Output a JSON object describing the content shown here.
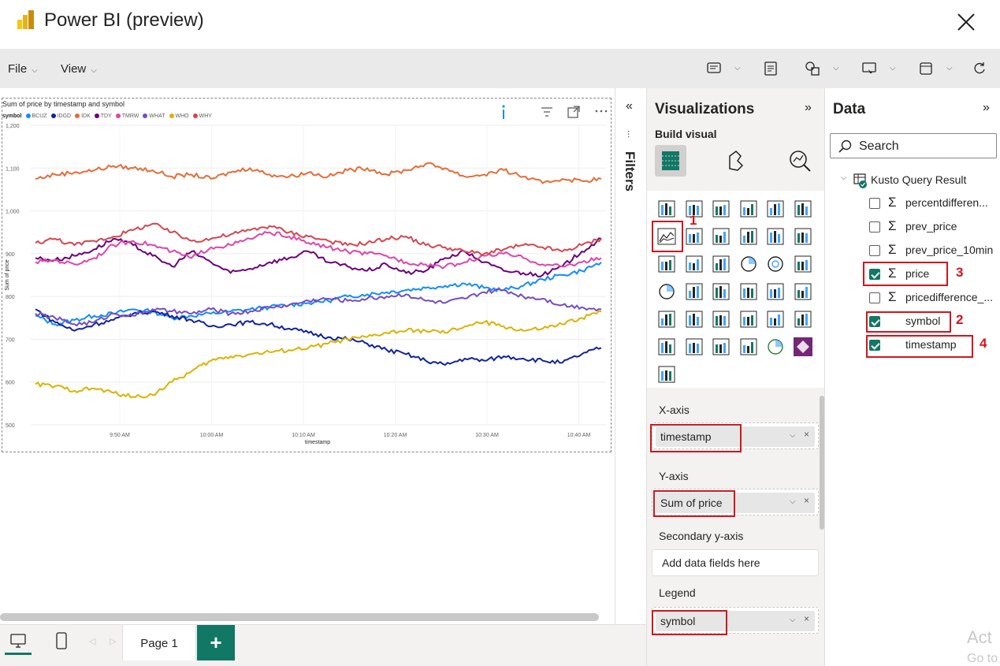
{
  "window": {
    "title": "Power BI (preview)"
  },
  "menubar": {
    "file_label": "File",
    "view_label": "View"
  },
  "visual": {
    "title": "Sum of price by timestamp and symbol",
    "legend_label": "symbol"
  },
  "chart_data": {
    "type": "line",
    "title": "Sum of price by timestamp and symbol",
    "xlabel": "timestamp",
    "ylabel": "Sum of price",
    "ylim": [
      500,
      1200
    ],
    "yticks": [
      "1,200",
      "1,100",
      "1,000",
      "900",
      "800",
      "700",
      "600",
      "500"
    ],
    "xticks": [
      "9:50 AM",
      "10:00 AM",
      "10:10 AM",
      "10:20 AM",
      "10:30 AM",
      "10:40 AM"
    ],
    "x_start": "9:45 AM",
    "x_end": "10:41 AM",
    "legend_title": "symbol",
    "legend_position": "top-left",
    "grid": true,
    "series": [
      {
        "name": "BCUZ",
        "color": "#118dff",
        "values": [
          755,
          735,
          745,
          755,
          760,
          770,
          765,
          750,
          755,
          760,
          765,
          770,
          775,
          780,
          785,
          790,
          800,
          805,
          810,
          815,
          820,
          825,
          830,
          820,
          815,
          825,
          840,
          850,
          860,
          880
        ]
      },
      {
        "name": "IDGD",
        "color": "#12239e",
        "values": [
          770,
          740,
          720,
          735,
          745,
          760,
          765,
          755,
          745,
          730,
          735,
          740,
          735,
          725,
          715,
          705,
          700,
          690,
          675,
          665,
          650,
          640,
          655,
          650,
          660,
          655,
          650,
          645,
          665,
          680
        ]
      },
      {
        "name": "IDK",
        "color": "#e66c37",
        "values": [
          1075,
          1085,
          1090,
          1095,
          1105,
          1100,
          1095,
          1080,
          1085,
          1075,
          1090,
          1100,
          1085,
          1080,
          1090,
          1080,
          1095,
          1100,
          1085,
          1095,
          1110,
          1100,
          1080,
          1085,
          1095,
          1080,
          1065,
          1075,
          1070,
          1075
        ]
      },
      {
        "name": "TDY",
        "color": "#6b007b",
        "values": [
          890,
          885,
          895,
          910,
          935,
          920,
          895,
          870,
          905,
          880,
          855,
          865,
          880,
          890,
          905,
          880,
          870,
          860,
          875,
          855,
          860,
          890,
          905,
          880,
          860,
          855,
          850,
          870,
          905,
          935
        ]
      },
      {
        "name": "TMRW",
        "color": "#e044a7",
        "values": [
          880,
          885,
          875,
          890,
          920,
          930,
          920,
          905,
          890,
          915,
          920,
          935,
          950,
          940,
          925,
          915,
          905,
          900,
          895,
          880,
          875,
          870,
          880,
          895,
          900,
          890,
          875,
          870,
          880,
          890
        ]
      },
      {
        "name": "WHAT",
        "color": "#744ec2",
        "values": [
          760,
          750,
          735,
          740,
          760,
          755,
          770,
          765,
          760,
          770,
          760,
          765,
          775,
          780,
          790,
          795,
          790,
          795,
          800,
          805,
          790,
          785,
          795,
          810,
          815,
          800,
          795,
          780,
          775,
          770
        ]
      },
      {
        "name": "WHO",
        "color": "#d9b300",
        "values": [
          595,
          590,
          580,
          585,
          575,
          565,
          570,
          600,
          625,
          650,
          660,
          665,
          670,
          675,
          680,
          690,
          700,
          705,
          715,
          720,
          720,
          715,
          730,
          740,
          730,
          720,
          725,
          735,
          750,
          765
        ]
      },
      {
        "name": "WHY",
        "color": "#d64550",
        "values": [
          925,
          935,
          920,
          930,
          940,
          955,
          970,
          950,
          930,
          935,
          945,
          955,
          965,
          950,
          940,
          930,
          920,
          925,
          935,
          940,
          920,
          915,
          905,
          900,
          910,
          920,
          915,
          905,
          920,
          935
        ]
      }
    ]
  },
  "filters": {
    "label": "Filters"
  },
  "visualizations": {
    "title": "Visualizations",
    "build_visual_label": "Build visual",
    "selected_number": "1",
    "x_axis_label": "X-axis",
    "x_axis_field": "timestamp",
    "y_axis_label": "Y-axis",
    "y_axis_field": "Sum of price",
    "secondary_label": "Secondary y-axis",
    "secondary_placeholder": "Add data fields here",
    "legend_label": "Legend",
    "legend_field": "symbol"
  },
  "data": {
    "title": "Data",
    "search_placeholder": "Search",
    "table_name": "Kusto Query Result",
    "fields": [
      {
        "name": "percentdifferen...",
        "checked": false,
        "sigma": true
      },
      {
        "name": "prev_price",
        "checked": false,
        "sigma": true
      },
      {
        "name": "prev_price_10min",
        "checked": false,
        "sigma": true
      },
      {
        "name": "price",
        "checked": true,
        "sigma": true,
        "step": "3"
      },
      {
        "name": "pricedifference_...",
        "checked": false,
        "sigma": true
      },
      {
        "name": "symbol",
        "checked": true,
        "sigma": false,
        "step": "2"
      },
      {
        "name": "timestamp",
        "checked": true,
        "sigma": false,
        "step": "4"
      }
    ]
  },
  "pages": {
    "current_page": "Page 1",
    "add_label": "+"
  },
  "watermark": {
    "line1": "Act",
    "line2": "Go to"
  }
}
